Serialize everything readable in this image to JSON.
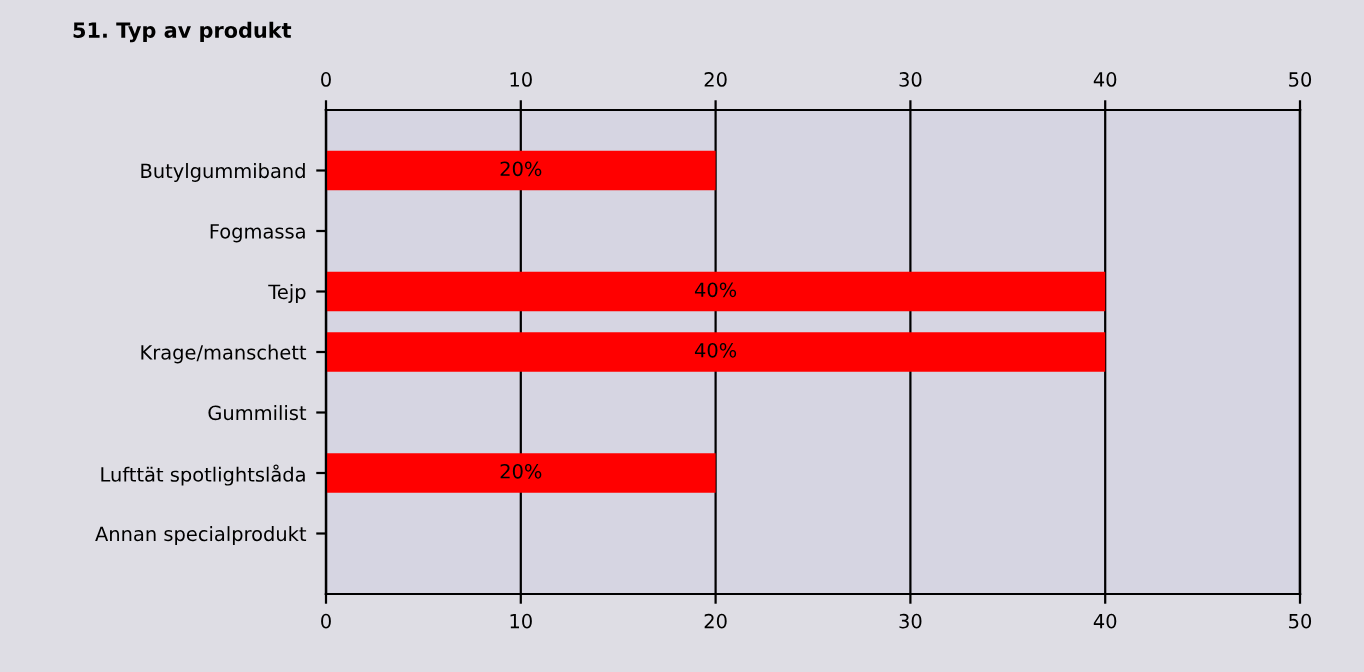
{
  "chart_data": {
    "type": "bar",
    "orientation": "horizontal",
    "title": "51. Typ av produkt",
    "categories": [
      "Butylgummiband",
      "Fogmassa",
      "Tejp",
      "Krage/manschett",
      "Gummilist",
      "Lufttät spotlightslåda",
      "Annan specialprodukt"
    ],
    "values": [
      20,
      0,
      40,
      40,
      0,
      20,
      0
    ],
    "value_labels": [
      "20%",
      null,
      "40%",
      "40%",
      null,
      "20%",
      null
    ],
    "color": "#ff0000",
    "xlim": [
      0,
      50
    ],
    "xticks": [
      0,
      10,
      20,
      30,
      40,
      50
    ],
    "x2lim": [
      0,
      50
    ],
    "x2ticks": [
      0,
      10,
      20,
      30,
      40,
      50
    ],
    "grid": "x"
  }
}
